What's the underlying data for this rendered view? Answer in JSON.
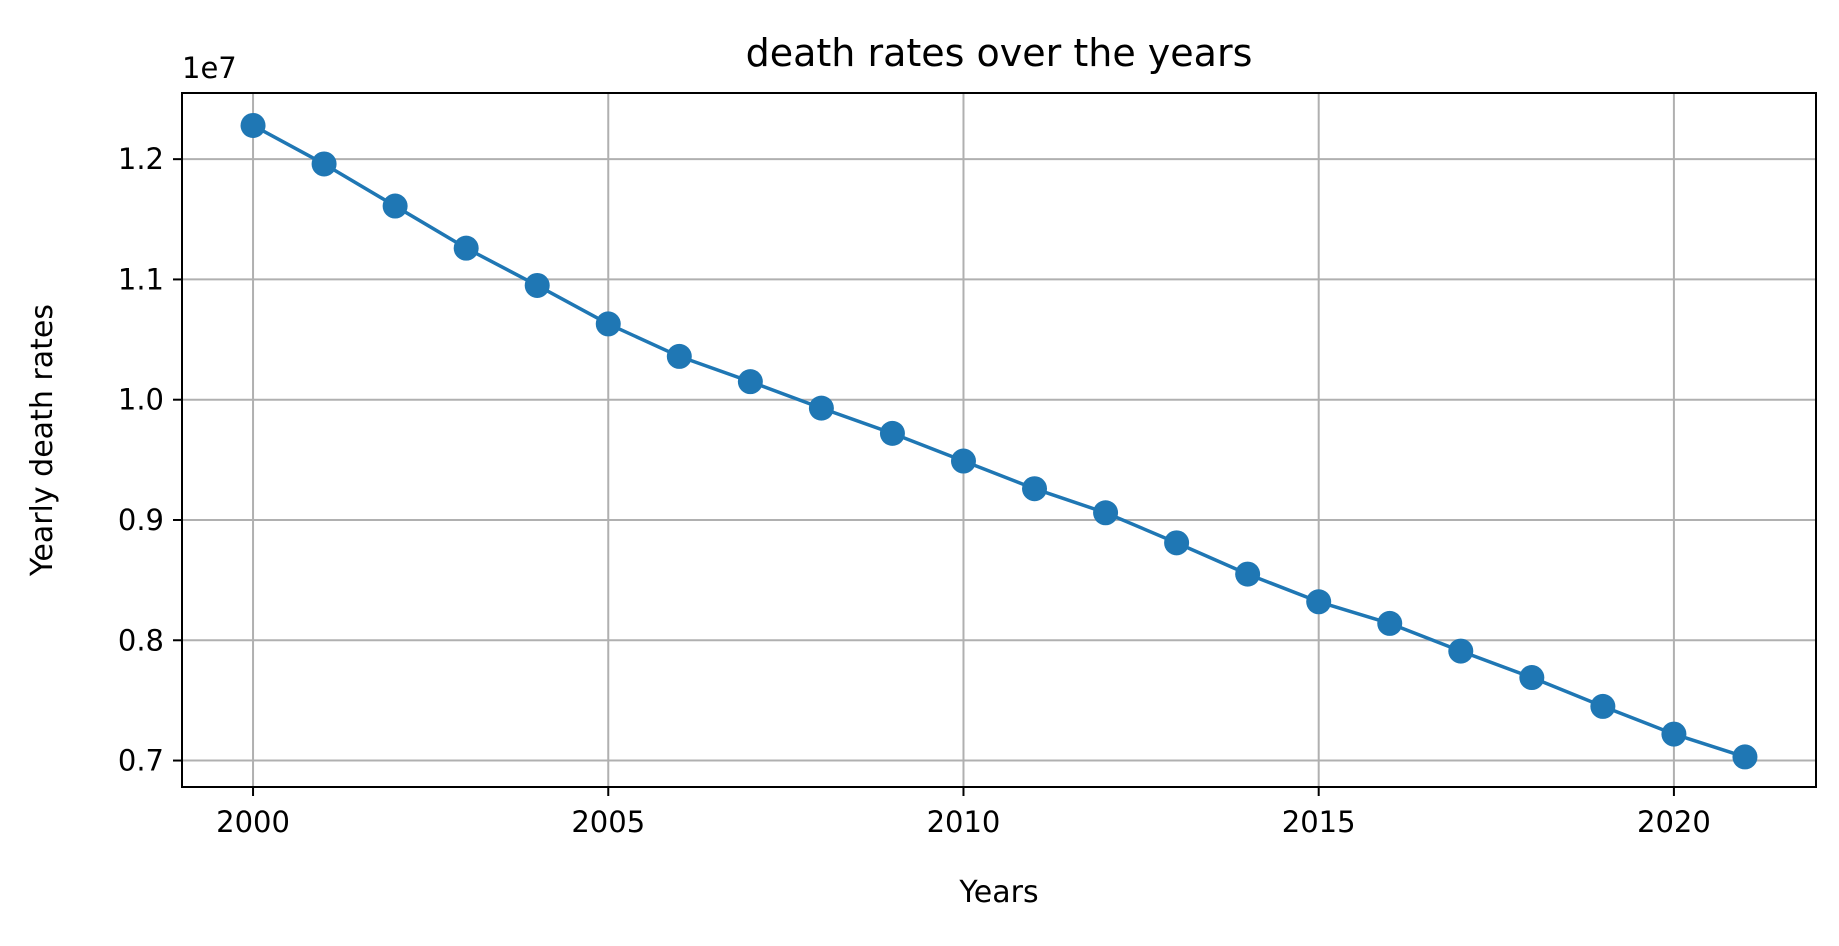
{
  "chart_data": {
    "type": "line",
    "title": "death rates over the years",
    "xlabel": "Years",
    "ylabel": "Yearly death rates",
    "y_offset_label": "1e7",
    "xlim": [
      1999,
      2022
    ],
    "ylim": [
      0.678,
      1.255
    ],
    "x_ticks": [
      2000,
      2005,
      2010,
      2015,
      2020
    ],
    "x_tick_labels": [
      "2000",
      "2005",
      "2010",
      "2015",
      "2020"
    ],
    "y_ticks": [
      0.7,
      0.8,
      0.9,
      1.0,
      1.1,
      1.2
    ],
    "y_tick_labels": [
      "0.7",
      "0.8",
      "0.9",
      "1.0",
      "1.1",
      "1.2"
    ],
    "grid": true,
    "color": "#1f77b4",
    "x": [
      2000,
      2001,
      2002,
      2003,
      2004,
      2005,
      2006,
      2007,
      2008,
      2009,
      2010,
      2011,
      2012,
      2013,
      2014,
      2015,
      2016,
      2017,
      2018,
      2019,
      2020,
      2021
    ],
    "series": [
      {
        "values": [
          1.228,
          1.196,
          1.161,
          1.126,
          1.095,
          1.063,
          1.036,
          1.015,
          0.993,
          0.972,
          0.949,
          0.926,
          0.906,
          0.881,
          0.855,
          0.832,
          0.814,
          0.791,
          0.769,
          0.745,
          0.722,
          0.703
        ]
      }
    ]
  }
}
